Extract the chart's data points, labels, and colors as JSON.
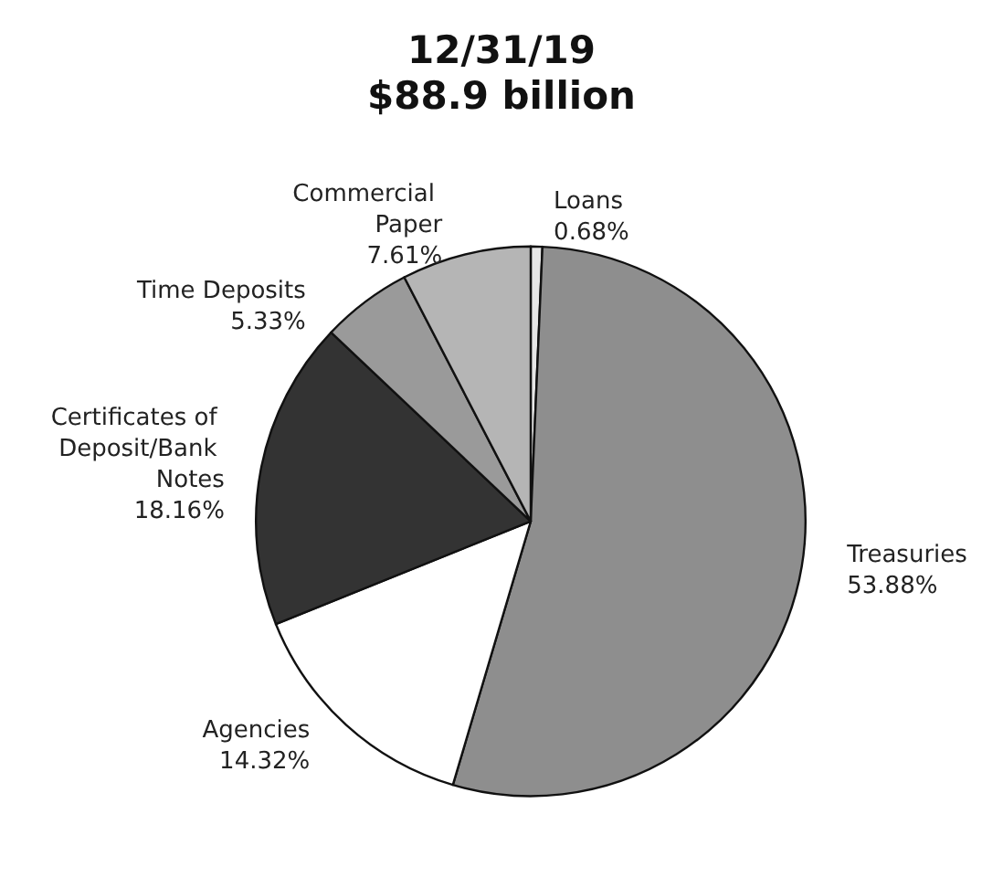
{
  "chart_data": {
    "type": "pie",
    "title": "12/31/19",
    "subtitle": "$88.9 billion",
    "categories": [
      "Loans",
      "Treasuries",
      "Agencies",
      "Certificates of Deposit/Bank Notes",
      "Time Deposits",
      "Commercial Paper"
    ],
    "values": [
      0.68,
      53.88,
      14.32,
      18.16,
      5.33,
      7.61
    ],
    "value_labels": [
      "0.68%",
      "53.88%",
      "14.32%",
      "18.16%",
      "5.33%",
      "7.61%"
    ],
    "colors": [
      "#e6e6e6",
      "#8e8e8e",
      "#ffffff",
      "#333333",
      "#9a9a9a",
      "#b5b5b5"
    ],
    "legend": false
  }
}
